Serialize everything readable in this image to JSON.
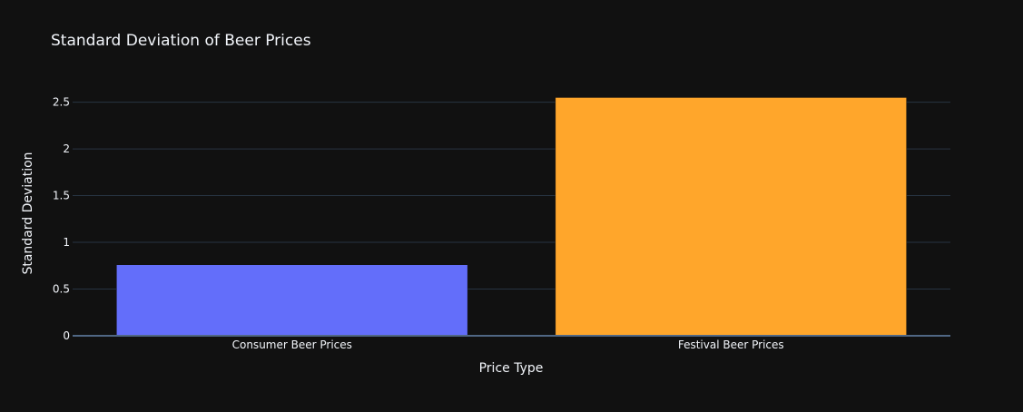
{
  "chart_data": {
    "type": "bar",
    "title": "Standard Deviation of Beer Prices",
    "xlabel": "Price Type",
    "ylabel": "Standard Deviation",
    "categories": [
      "Consumer Beer Prices",
      "Festival Beer Prices"
    ],
    "values": [
      0.76,
      2.55
    ],
    "bar_colors": [
      "#636efa",
      "#ffa62b"
    ],
    "ylim": [
      0,
      2.7
    ],
    "yticks": [
      0,
      0.5,
      1,
      1.5,
      2,
      2.5
    ],
    "ytick_labels": [
      "0",
      "0.5",
      "1",
      "1.5",
      "2",
      "2.5"
    ],
    "grid": true,
    "legend": "none"
  },
  "colors": {
    "background": "#111111",
    "text": "#f2f5fa",
    "grid": "#283442",
    "zeroline": "#506784"
  }
}
